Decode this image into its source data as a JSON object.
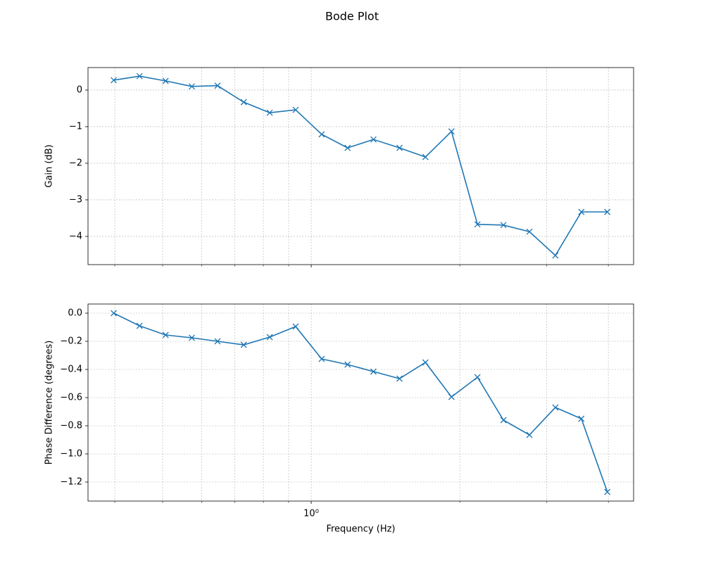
{
  "title": "Bode Plot",
  "chart_data": [
    {
      "type": "line",
      "xscale": "log",
      "grid": true,
      "color": "#1f77b4",
      "marker": "x",
      "ylabel": "Gain (dB)",
      "x": [
        0.398,
        0.449,
        0.507,
        0.573,
        0.646,
        0.73,
        0.824,
        0.93,
        1.05,
        1.185,
        1.337,
        1.51,
        1.704,
        1.924,
        2.172,
        2.452,
        2.768,
        3.124,
        3.527,
        3.981
      ],
      "values": [
        0.27,
        0.38,
        0.25,
        0.1,
        0.12,
        -0.33,
        -0.62,
        -0.54,
        -1.21,
        -1.58,
        -1.35,
        -1.58,
        -1.83,
        -1.13,
        -3.67,
        -3.69,
        -3.87,
        -4.52,
        -3.33,
        -3.33
      ],
      "xlim": [
        0.353,
        4.5
      ],
      "xticks": [
        1
      ],
      "xminorticks": [
        0.4,
        0.5,
        0.6,
        0.7,
        0.8,
        0.9,
        2,
        3,
        4
      ],
      "ylim": [
        -4.77,
        0.615
      ],
      "yticks": [
        {
          "value": -4,
          "label": "−4"
        },
        {
          "value": -3,
          "label": "−3"
        },
        {
          "value": -2,
          "label": "−2"
        },
        {
          "value": -1,
          "label": "−1"
        },
        0
      ]
    },
    {
      "type": "line",
      "xscale": "log",
      "grid": true,
      "color": "#1f77b4",
      "marker": "x",
      "ylabel": "Phase Difference (degrees)",
      "xlabel": "Frequency (Hz)",
      "x": [
        0.398,
        0.449,
        0.507,
        0.573,
        0.646,
        0.73,
        0.824,
        0.93,
        1.05,
        1.185,
        1.337,
        1.51,
        1.704,
        1.924,
        2.172,
        2.452,
        2.768,
        3.124,
        3.527,
        3.981
      ],
      "values": [
        0,
        -0.09,
        -0.155,
        -0.175,
        -0.2,
        -0.225,
        -0.17,
        -0.095,
        -0.325,
        -0.365,
        -0.415,
        -0.465,
        -0.35,
        -0.595,
        -0.455,
        -0.76,
        -0.865,
        -0.67,
        -0.75,
        -1.27
      ],
      "xlim": [
        0.353,
        4.5
      ],
      "xticks": [
        {
          "value": 1,
          "label": "10⁰"
        }
      ],
      "xminorticks": [
        0.4,
        0.5,
        0.6,
        0.7,
        0.8,
        0.9,
        2,
        3,
        4
      ],
      "ylim": [
        -1.335,
        0.065
      ],
      "yticks": [
        {
          "value": -1.2,
          "label": "−1.2"
        },
        {
          "value": -1.0,
          "label": "−1.0"
        },
        {
          "value": -0.8,
          "label": "−0.8"
        },
        {
          "value": -0.6,
          "label": "−0.6"
        },
        {
          "value": -0.4,
          "label": "−0.4"
        },
        {
          "value": -0.2,
          "label": "−0.2"
        },
        {
          "value": 0,
          "label": "0.0"
        }
      ]
    }
  ]
}
